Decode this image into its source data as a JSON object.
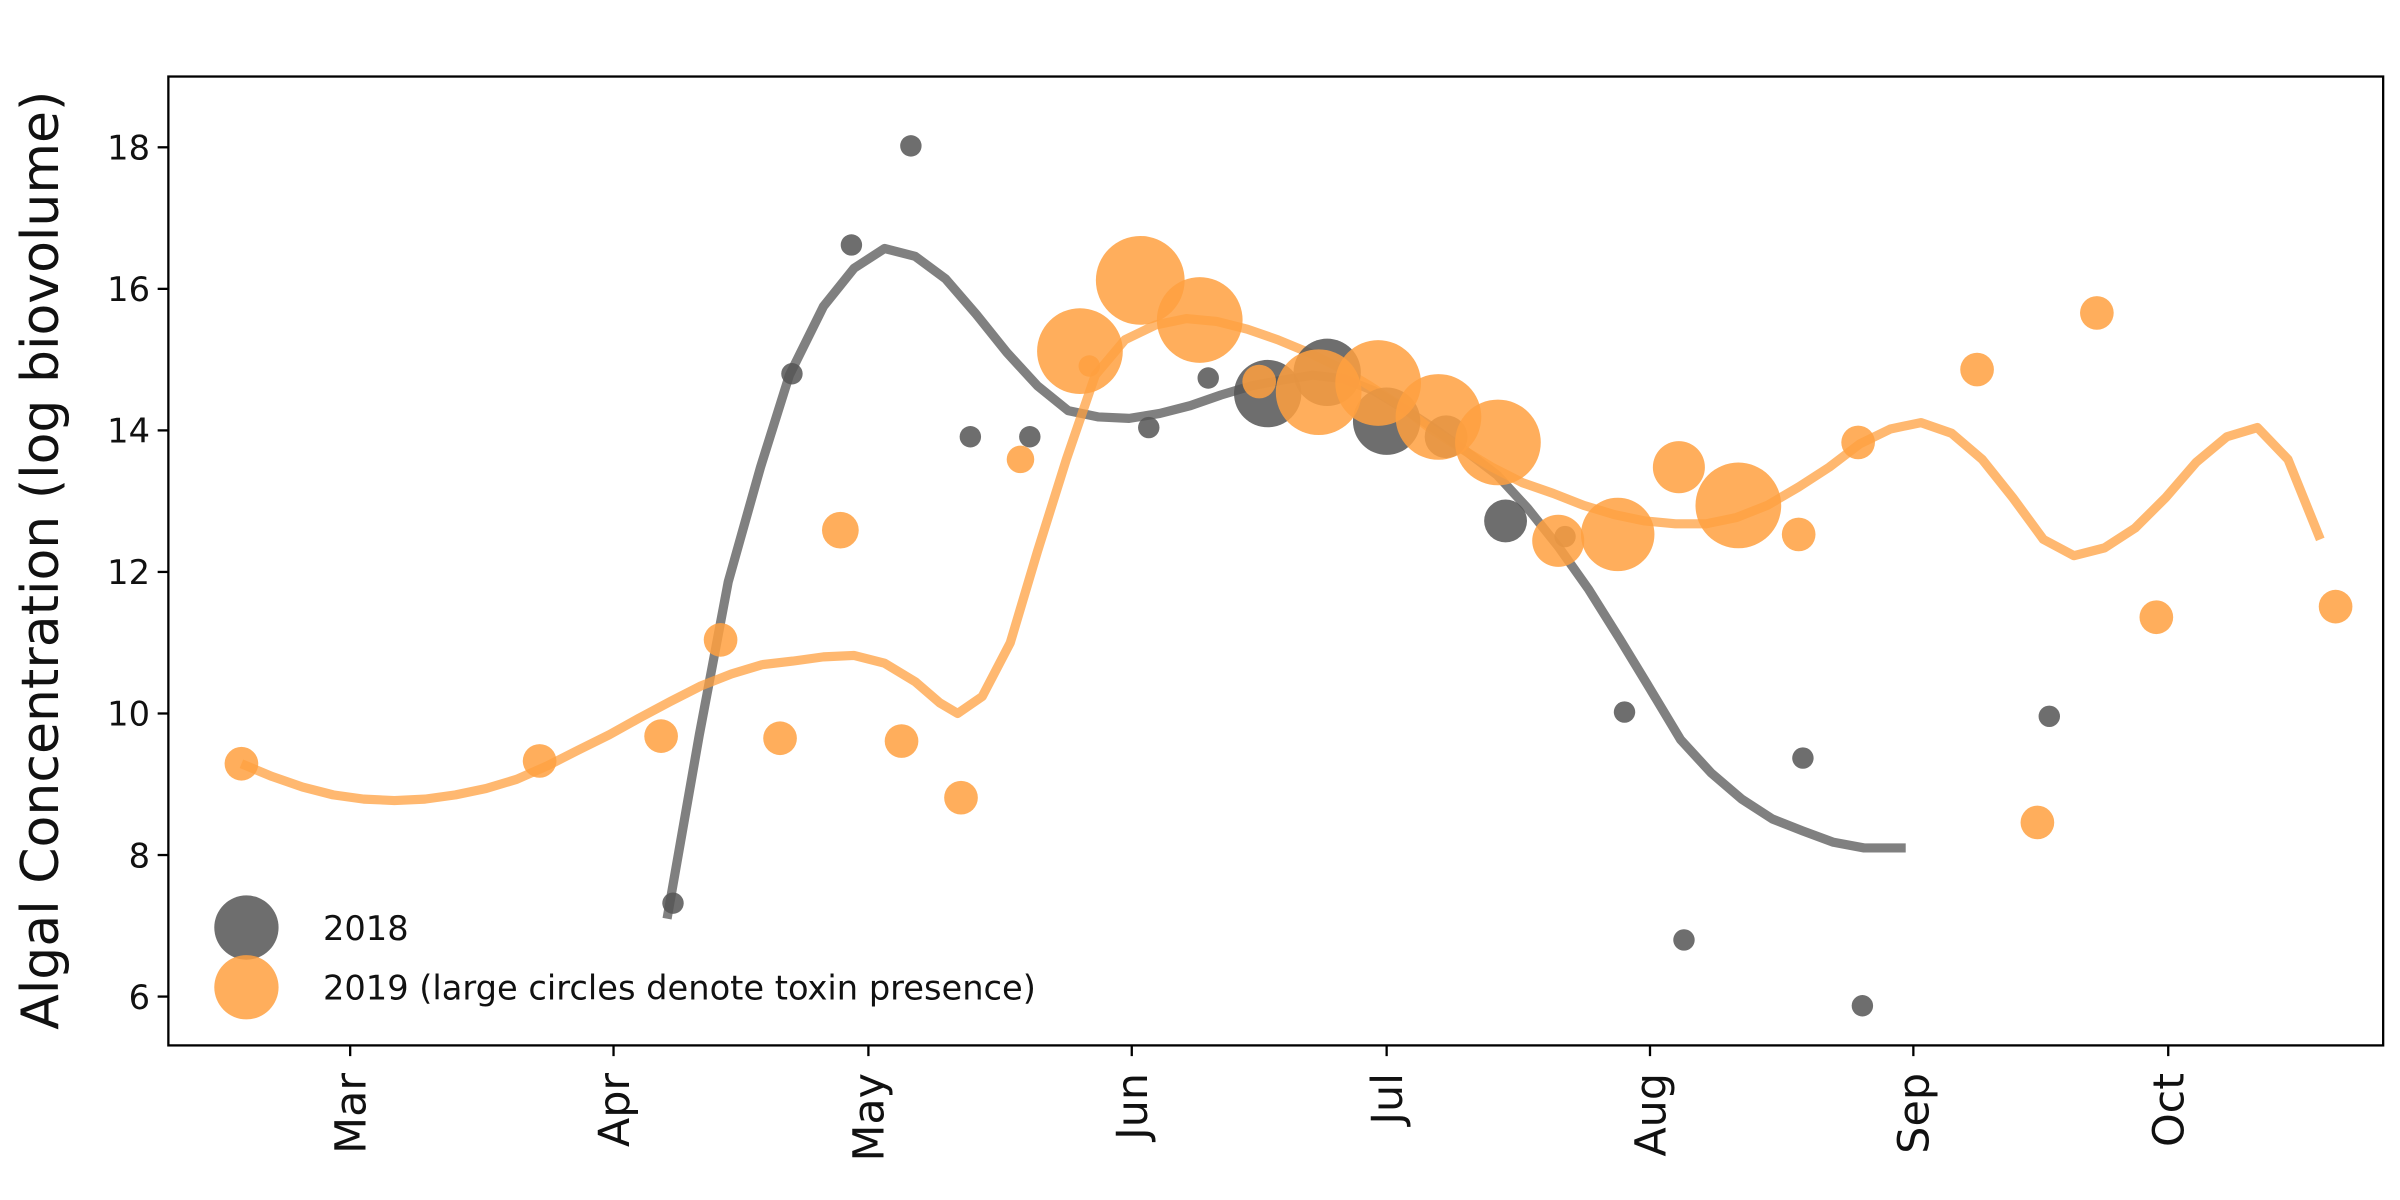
{
  "chart_data": {
    "type": "scatter",
    "y_label": "Algal Concentration (log biovolume)",
    "xlim": [
      38.6,
      299.3
    ],
    "ylim": [
      5.31,
      19.0
    ],
    "xticks": [
      {
        "value": 60,
        "label": "Mar"
      },
      {
        "value": 91,
        "label": "Apr"
      },
      {
        "value": 121,
        "label": "May"
      },
      {
        "value": 152,
        "label": "Jun"
      },
      {
        "value": 182,
        "label": "Jul"
      },
      {
        "value": 213,
        "label": "Aug"
      },
      {
        "value": 244,
        "label": "Sep"
      },
      {
        "value": 274,
        "label": "Oct"
      }
    ],
    "yticks": [
      6,
      8,
      10,
      12,
      14,
      16,
      18
    ],
    "grid": false,
    "legend": "lower left",
    "series": [
      {
        "name": "2018",
        "color": "#555555",
        "x": [
          98,
          112,
          119,
          126,
          133,
          140,
          154,
          161,
          168,
          175,
          182,
          189,
          196,
          203,
          210,
          217,
          231,
          238,
          260
        ],
        "values": [
          7.32,
          14.8,
          16.62,
          18.02,
          13.91,
          13.91,
          14.04,
          14.74,
          14.52,
          14.82,
          14.13,
          13.91,
          12.72,
          12.5,
          10.02,
          6.8,
          9.37,
          5.87,
          9.96
        ],
        "sizes": [
          7,
          7,
          7,
          7,
          7,
          7,
          7,
          7,
          22,
          22,
          22,
          14,
          14,
          7,
          7,
          7,
          7,
          7,
          7
        ],
        "line": {
          "x": [
            97.3,
            101.1,
            104.5,
            108.3,
            111.7,
            115.7,
            119.3,
            122.9,
            126.5,
            130.1,
            133.7,
            137.3,
            140.9,
            144.5,
            148.1,
            151.7,
            155.3,
            158.9,
            162.5,
            166.1,
            169.7,
            173.3,
            176.9,
            180.5,
            184.1,
            187.7,
            191.4,
            195,
            198.6,
            202.2,
            205.8,
            209.4,
            213,
            216.6,
            220.2,
            223.8,
            227.4,
            231,
            234.6,
            238.2,
            243.1
          ],
          "values": [
            7.1,
            9.7,
            11.86,
            13.48,
            14.78,
            15.75,
            16.29,
            16.57,
            16.46,
            16.14,
            15.64,
            15.1,
            14.63,
            14.28,
            14.19,
            14.17,
            14.24,
            14.35,
            14.5,
            14.63,
            14.71,
            14.78,
            14.73,
            14.56,
            14.3,
            14.02,
            13.7,
            13.37,
            12.9,
            12.36,
            11.75,
            11.06,
            10.35,
            9.63,
            9.16,
            8.79,
            8.51,
            8.34,
            8.18,
            8.1,
            8.1
          ]
        }
      },
      {
        "name": "2019 (large circles denote toxin presence)",
        "color": "#ffa040",
        "x": [
          47.2,
          82.3,
          96.6,
          103.6,
          110.6,
          117.7,
          124.9,
          131.9,
          138.9,
          145.9,
          147.0,
          153,
          160,
          167,
          174,
          181,
          188.1,
          195.1,
          202.2,
          209.2,
          216.4,
          223.4,
          230.5,
          237.5,
          251.5,
          258.6,
          265.6,
          272.6,
          293.7
        ],
        "values": [
          9.29,
          9.33,
          9.68,
          11.04,
          9.65,
          12.59,
          9.61,
          8.81,
          13.59,
          15.12,
          14.91,
          16.12,
          15.56,
          14.69,
          14.54,
          14.67,
          14.19,
          13.83,
          12.44,
          12.53,
          13.48,
          12.94,
          12.53,
          13.83,
          14.86,
          8.46,
          15.66,
          11.36,
          11.51
        ],
        "sizes": [
          11,
          11,
          11,
          11,
          11,
          12,
          11,
          11,
          9,
          28,
          7,
          29,
          28,
          11,
          28,
          28,
          28,
          28,
          17,
          24,
          17,
          28,
          11,
          11,
          11,
          11,
          11,
          11,
          11
        ],
        "line": {
          "x": [
            47.2,
            50.8,
            54.4,
            58.0,
            61.6,
            65.2,
            68.8,
            72.4,
            76.0,
            79.6,
            83.2,
            86.8,
            90.5,
            94.1,
            97.7,
            101.3,
            104.9,
            108.5,
            112.1,
            115.7,
            119.3,
            122.9,
            126.5,
            129.4,
            131.5,
            134.4,
            137.7,
            140.9,
            144.3,
            147.7,
            151.2,
            154.8,
            158.4,
            162.0,
            165.6,
            169.2,
            172.8,
            176.4,
            180.0,
            183.6,
            187.2,
            190.8,
            194.4,
            198.0,
            201.6,
            205.2,
            208.8,
            212.4,
            216.0,
            219.6,
            223.2,
            226.8,
            230.5,
            234.1,
            237.7,
            241.3,
            244.9,
            248.5,
            252.1,
            255.7,
            259.3,
            262.9,
            266.5,
            270.1,
            273.7,
            277.3,
            280.9,
            284.5,
            288.1,
            291.9
          ],
          "values": [
            9.29,
            9.11,
            8.96,
            8.85,
            8.79,
            8.77,
            8.79,
            8.85,
            8.94,
            9.07,
            9.26,
            9.48,
            9.7,
            9.94,
            10.17,
            10.39,
            10.56,
            10.69,
            10.74,
            10.8,
            10.82,
            10.71,
            10.45,
            10.15,
            10.0,
            10.24,
            11.0,
            12.29,
            13.59,
            14.78,
            15.28,
            15.49,
            15.58,
            15.54,
            15.43,
            15.28,
            15.1,
            14.89,
            14.63,
            14.35,
            14.02,
            13.74,
            13.48,
            13.26,
            13.11,
            12.94,
            12.81,
            12.72,
            12.68,
            12.68,
            12.77,
            12.94,
            13.2,
            13.48,
            13.81,
            14.02,
            14.11,
            13.96,
            13.59,
            13.05,
            12.46,
            12.23,
            12.34,
            12.62,
            13.05,
            13.55,
            13.91,
            14.04,
            13.59,
            12.46
          ]
        }
      }
    ]
  }
}
